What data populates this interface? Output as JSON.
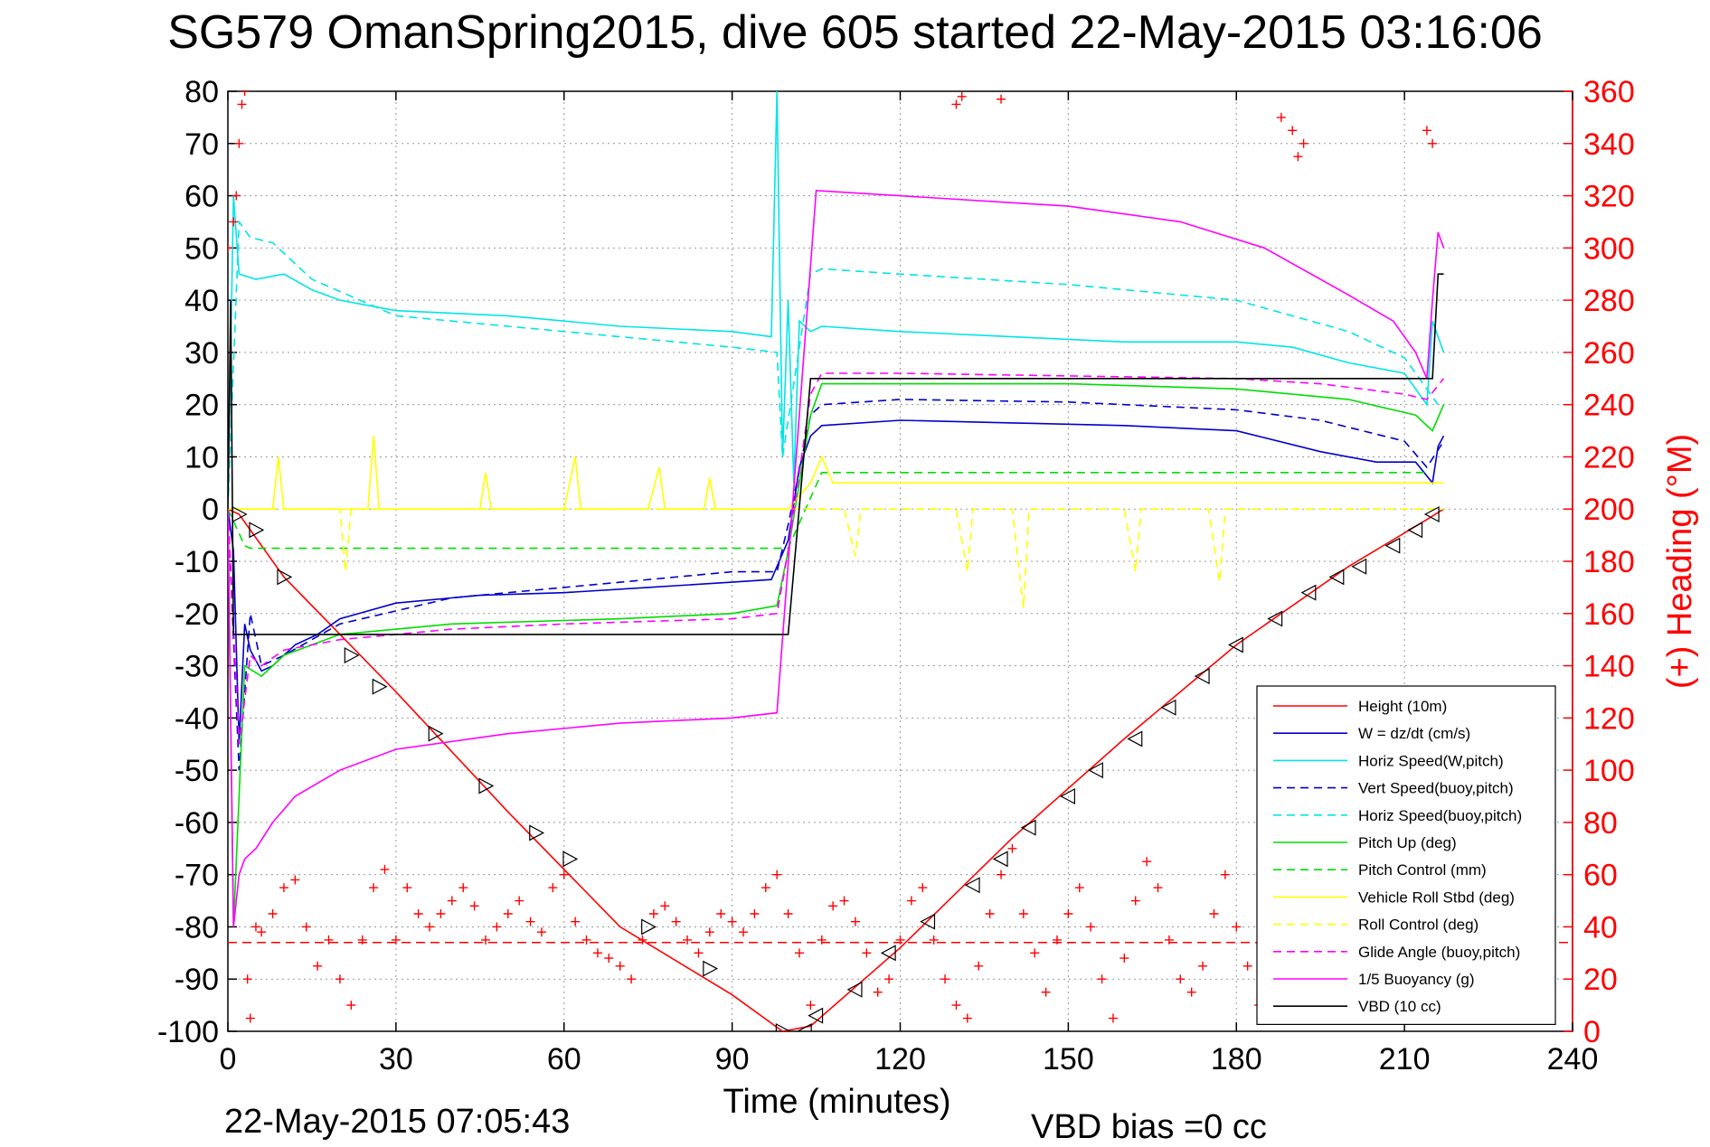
{
  "title": "SG579 OmanSpring2015, dive 605 started 22-May-2015 03:16:06",
  "footer": {
    "end_time": "22-May-2015 07:05:43",
    "vbd_bias": "VBD bias =0 cc"
  },
  "chart_data": {
    "type": "line",
    "xlabel": "Time (minutes)",
    "ylabel_right": "(+) Heading (°M)",
    "xlim": [
      0,
      240
    ],
    "ylim_left": [
      -100,
      80
    ],
    "ylim_right": [
      0,
      360
    ],
    "xticks": [
      0,
      30,
      60,
      90,
      120,
      150,
      180,
      210,
      240
    ],
    "yticks_left": [
      80,
      70,
      60,
      50,
      40,
      30,
      20,
      10,
      0,
      -10,
      -20,
      -30,
      -40,
      -50,
      -60,
      -70,
      -80,
      -90,
      -100
    ],
    "yticks_right": [
      360,
      340,
      320,
      300,
      280,
      260,
      240,
      220,
      200,
      180,
      160,
      140,
      120,
      100,
      80,
      60,
      40,
      20,
      0
    ],
    "grid": true,
    "legend_position": "bottom-right",
    "series": [
      {
        "name": "Height (10m)",
        "color": "#ff0000",
        "style": "solid",
        "x": [
          0,
          2,
          10,
          30,
          50,
          70,
          90,
          99,
          104,
          120,
          140,
          160,
          180,
          200,
          214,
          217
        ],
        "y": [
          0,
          -1,
          -13,
          -35,
          -58,
          -80,
          -93,
          -100,
          -99,
          -84,
          -63,
          -44,
          -26,
          -11,
          -2,
          0
        ]
      },
      {
        "name": "W = dz/dt (cm/s)",
        "color": "#0000cc",
        "style": "solid",
        "x": [
          0,
          1,
          2,
          3,
          4,
          6,
          8,
          12,
          16,
          20,
          30,
          45,
          60,
          75,
          90,
          97,
          100,
          102,
          104,
          106,
          120,
          140,
          160,
          180,
          195,
          205,
          212,
          215,
          216,
          217
        ],
        "y": [
          0,
          -8,
          -45,
          -22,
          -27,
          -31,
          -30,
          -26,
          -24,
          -21,
          -18,
          -16.5,
          -16,
          -15,
          -14,
          -13.5,
          -6,
          8,
          14,
          16,
          17,
          16.5,
          16,
          15,
          11,
          9,
          9,
          5,
          12,
          14
        ]
      },
      {
        "name": "Horiz Speed(W,pitch)",
        "color": "#00e5e5",
        "style": "solid",
        "x": [
          0,
          1,
          2,
          5,
          10,
          15,
          20,
          30,
          50,
          70,
          90,
          97,
          98,
          99,
          100,
          101,
          102,
          104,
          106,
          120,
          140,
          160,
          180,
          190,
          200,
          210,
          214,
          215,
          217
        ],
        "y": [
          0,
          60,
          45,
          44,
          45,
          42,
          40,
          38,
          37,
          35,
          34,
          33,
          80,
          10,
          40,
          5,
          36,
          34,
          35,
          34,
          33,
          32,
          32,
          31,
          28,
          26,
          20,
          36,
          30
        ]
      },
      {
        "name": "Vert Speed(buoy,pitch)",
        "color": "#0000cc",
        "style": "dashed",
        "x": [
          0,
          2,
          4,
          6,
          10,
          20,
          40,
          60,
          90,
          98,
          100,
          104,
          106,
          120,
          150,
          180,
          195,
          210,
          214,
          217
        ],
        "y": [
          0,
          -50,
          -20,
          -30,
          -28,
          -22,
          -17,
          -15,
          -12,
          -12,
          -3,
          18,
          20,
          21,
          20.5,
          19,
          17,
          13,
          8,
          13
        ]
      },
      {
        "name": "Horiz Speed(buoy,pitch)",
        "color": "#00e5e5",
        "style": "dashed",
        "x": [
          0,
          2,
          4,
          8,
          15,
          30,
          60,
          90,
          98,
          99,
          104,
          106,
          120,
          150,
          180,
          200,
          210,
          216
        ],
        "y": [
          0,
          55,
          52,
          51,
          44,
          37,
          34,
          31,
          30,
          10,
          45,
          46,
          45,
          43,
          40,
          34,
          29,
          20
        ]
      },
      {
        "name": "Pitch Up (deg)",
        "color": "#00dd00",
        "style": "solid",
        "x": [
          0,
          1,
          2,
          3,
          6,
          10,
          20,
          40,
          70,
          90,
          98,
          100,
          104,
          106,
          120,
          150,
          180,
          200,
          212,
          215,
          217
        ],
        "y": [
          0,
          -80,
          -55,
          -30,
          -32,
          -28,
          -24,
          -22,
          -21,
          -20,
          -18.5,
          -8,
          18,
          24,
          24,
          24,
          23,
          21,
          18,
          15,
          20
        ]
      },
      {
        "name": "Pitch Control (mm)",
        "color": "#00dd00",
        "style": "dashed",
        "x": [
          0,
          3,
          4,
          98,
          100,
          106,
          212,
          214
        ],
        "y": [
          0,
          -7,
          -7.5,
          -7.5,
          -7.5,
          7,
          7,
          7
        ]
      },
      {
        "name": "Vehicle Roll Stbd (deg)",
        "color": "#ffff00",
        "style": "solid",
        "x": [
          0,
          5,
          8,
          9,
          10,
          11,
          13,
          20,
          25,
          26,
          27,
          30,
          40,
          45,
          46,
          47,
          60,
          62,
          63,
          64,
          75,
          77,
          78,
          79,
          85,
          86,
          87,
          88,
          100,
          104,
          106,
          108,
          110,
          120,
          130,
          140,
          150,
          160,
          170,
          180,
          190,
          195,
          200,
          210,
          217
        ],
        "y": [
          0,
          0,
          0,
          10,
          0,
          0,
          0,
          0,
          0,
          14,
          0,
          0,
          0,
          0,
          7,
          0,
          0,
          10,
          0,
          0,
          0,
          8,
          0,
          0,
          0,
          6,
          0,
          0,
          0,
          5,
          10,
          5,
          5,
          5,
          5,
          5,
          5,
          5,
          5,
          5,
          5,
          5,
          5,
          5,
          5
        ]
      },
      {
        "name": "Roll Control (deg)",
        "color": "#ffff00",
        "style": "dashed",
        "x": [
          0,
          20,
          21,
          22,
          100,
          110,
          112,
          113,
          115,
          130,
          132,
          133,
          140,
          142,
          143,
          150,
          160,
          162,
          163,
          175,
          177,
          178,
          200,
          217
        ],
        "y": [
          0,
          0,
          -12,
          0,
          0,
          0,
          -9,
          0,
          0,
          0,
          -12,
          0,
          0,
          -19,
          0,
          0,
          0,
          -12,
          0,
          0,
          -14,
          0,
          0,
          0
        ]
      },
      {
        "name": "Glide Angle (buoy,pitch)",
        "color": "#ff00ff",
        "style": "dashed",
        "x": [
          0,
          2,
          4,
          6,
          10,
          20,
          40,
          60,
          90,
          98,
          100,
          104,
          106,
          120,
          150,
          180,
          195,
          210,
          214,
          217
        ],
        "y": [
          0,
          -45,
          -28,
          -30,
          -27,
          -25,
          -23,
          -22,
          -21,
          -20,
          -8,
          22,
          26,
          26,
          25.5,
          25,
          24,
          22,
          21,
          25
        ]
      },
      {
        "name": "1/5 Buoyancy (g)",
        "color": "#ff00ff",
        "style": "solid",
        "x": [
          0,
          1,
          2,
          3,
          5,
          8,
          12,
          20,
          30,
          50,
          70,
          90,
          98,
          105,
          120,
          150,
          170,
          185,
          200,
          208,
          212,
          214,
          215,
          216,
          217
        ],
        "y": [
          0,
          -80,
          -70,
          -67,
          -65,
          -60,
          -55,
          -50,
          -46,
          -43,
          -41,
          -40,
          -39,
          61,
          60,
          58,
          55,
          50,
          41,
          36,
          30,
          25,
          40,
          53,
          50
        ]
      },
      {
        "name": "VBD (10 cc)",
        "color": "#000000",
        "style": "solid",
        "x": [
          0,
          0.5,
          1,
          2,
          3,
          97,
          98,
          100,
          104,
          105,
          214,
          215,
          216,
          217
        ],
        "y": [
          0,
          40,
          -24,
          -24,
          -24,
          -24,
          -24,
          -24,
          25,
          25,
          25,
          25,
          45,
          45
        ]
      }
    ],
    "heading": {
      "name": "(+) Heading (°M)",
      "color": "#ff0000",
      "marker": "+",
      "axis": "right",
      "mean": 34,
      "x": [
        0,
        1,
        1.5,
        2,
        2.5,
        3,
        3.5,
        4,
        5,
        6,
        8,
        10,
        12,
        14,
        16,
        18,
        20,
        22,
        24,
        26,
        28,
        30,
        32,
        34,
        36,
        38,
        40,
        42,
        44,
        46,
        48,
        50,
        52,
        54,
        56,
        58,
        60,
        62,
        64,
        66,
        68,
        70,
        72,
        74,
        76,
        78,
        80,
        82,
        84,
        86,
        88,
        90,
        92,
        94,
        96,
        98,
        100,
        102,
        104,
        106,
        108,
        110,
        112,
        114,
        116,
        118,
        120,
        122,
        124,
        126,
        128,
        130,
        132,
        134,
        136,
        138,
        140,
        142,
        144,
        146,
        148,
        150,
        152,
        154,
        156,
        158,
        160,
        162,
        164,
        166,
        168,
        170,
        172,
        174,
        176,
        178,
        180,
        182,
        184,
        186,
        188,
        190,
        192,
        194,
        196,
        198,
        200,
        202,
        204,
        206,
        208,
        210,
        212,
        214,
        216
      ],
      "y": [
        300,
        310,
        320,
        340,
        355,
        360,
        20,
        5,
        40,
        38,
        45,
        55,
        58,
        40,
        25,
        35,
        20,
        10,
        35,
        55,
        62,
        35,
        55,
        45,
        40,
        45,
        50,
        55,
        48,
        35,
        40,
        45,
        50,
        42,
        38,
        55,
        60,
        42,
        35,
        30,
        28,
        25,
        20,
        35,
        45,
        48,
        42,
        35,
        30,
        38,
        45,
        42,
        38,
        45,
        55,
        60,
        45,
        30,
        10,
        35,
        48,
        50,
        42,
        30,
        15,
        20,
        35,
        50,
        55,
        35,
        20,
        10,
        5,
        25,
        45,
        60,
        70,
        45,
        30,
        15,
        35,
        45,
        55,
        40,
        20,
        5,
        28,
        50,
        65,
        55,
        35,
        20,
        15,
        25,
        45,
        60,
        40,
        25,
        10,
        40,
        45,
        48,
        38,
        25,
        15,
        30,
        45,
        48,
        38,
        25,
        20,
        30,
        40,
        35,
        42
      ]
    },
    "heading_outliers": {
      "x": [
        130,
        131,
        138,
        188,
        190,
        191,
        192,
        214,
        215
      ],
      "y": [
        355,
        358,
        357,
        350,
        345,
        335,
        340,
        345,
        340
      ]
    },
    "triangle_markers": {
      "x": [
        2,
        5,
        10,
        22,
        27,
        37,
        46,
        55,
        61,
        75,
        86,
        99,
        103,
        105,
        112,
        118,
        125,
        133,
        138,
        143,
        150,
        155,
        162,
        168,
        174,
        180,
        187,
        193,
        198,
        202,
        208,
        212,
        215
      ],
      "y": [
        -1,
        -4,
        -13,
        -28,
        -34,
        -43,
        -53,
        -62,
        -67,
        -80,
        -88,
        -100,
        -100,
        -97,
        -92,
        -85,
        -79,
        -72,
        -67,
        -61,
        -55,
        -50,
        -44,
        -38,
        -32,
        -26,
        -21,
        -16,
        -13,
        -11,
        -7,
        -4,
        -1
      ]
    },
    "legend": [
      "Height (10m)",
      "W = dz/dt (cm/s)",
      "Horiz Speed(W,pitch)",
      "Vert Speed(buoy,pitch)",
      "Horiz Speed(buoy,pitch)",
      "Pitch Up (deg)",
      "Pitch Control (mm)",
      "Vehicle Roll Stbd (deg)",
      "Roll Control (deg)",
      "Glide Angle (buoy,pitch)",
      "1/5 Buoyancy (g)",
      "VBD (10 cc)"
    ]
  }
}
